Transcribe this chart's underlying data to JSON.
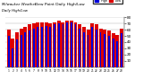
{
  "title": "Milwaukee Weather Dew Point",
  "subtitle": "Daily High/Low",
  "bar_high_color": "#0000dd",
  "bar_low_color": "#dd0000",
  "ylim": [
    0,
    80
  ],
  "yticks": [
    10,
    20,
    30,
    40,
    50,
    60,
    70,
    80
  ],
  "background_color": "#ffffff",
  "labels": [
    "1",
    "2",
    "3",
    "4",
    "5",
    "6",
    "7",
    "8",
    "9",
    "10",
    "11",
    "12",
    "13",
    "14",
    "15",
    "16",
    "17",
    "18",
    "19",
    "20",
    "21",
    "22",
    "23",
    "24",
    "25",
    "26",
    "27",
    "28"
  ],
  "high_values": [
    50,
    30,
    44,
    52,
    56,
    58,
    62,
    64,
    64,
    66,
    65,
    68,
    70,
    68,
    71,
    71,
    68,
    62,
    56,
    52,
    64,
    60,
    56,
    53,
    50,
    46,
    42,
    54
  ],
  "low_values": [
    60,
    46,
    56,
    62,
    64,
    68,
    70,
    72,
    72,
    72,
    70,
    72,
    74,
    72,
    74,
    74,
    72,
    68,
    64,
    60,
    70,
    68,
    62,
    60,
    58,
    54,
    52,
    62
  ]
}
